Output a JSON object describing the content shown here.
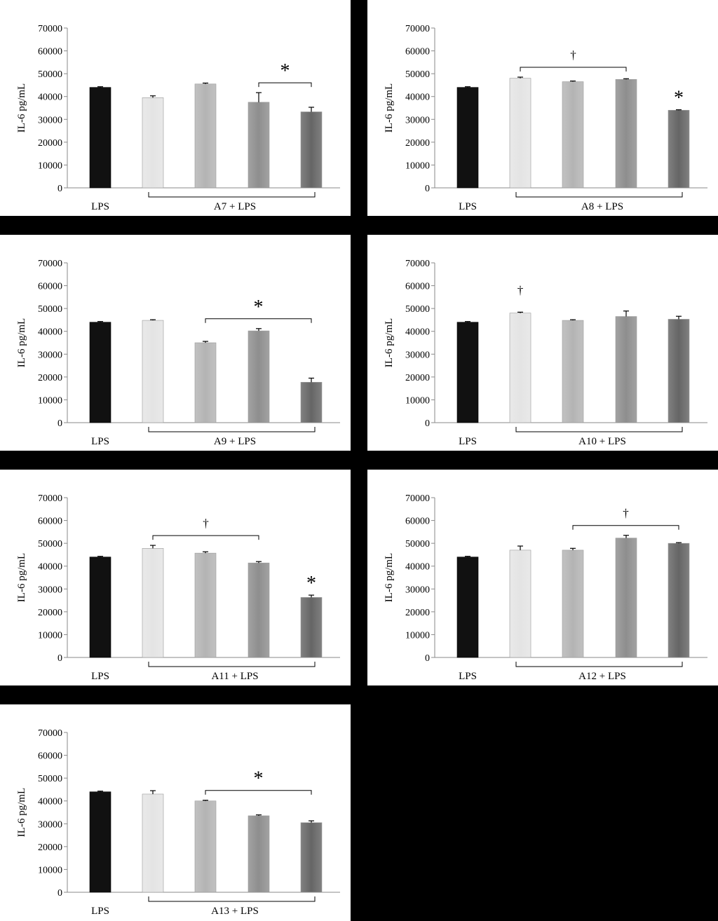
{
  "colors": {
    "series": [
      "#111111",
      "#e4e4e4",
      "#b4b4b4",
      "#8e8e8e",
      "#656565"
    ],
    "background": "#000000",
    "panel": "#ffffff"
  },
  "chart_data": [
    {
      "type": "bar",
      "ylabel": "IL-6 pg/mL",
      "ylim": [
        0,
        70000
      ],
      "yticks": [
        "0",
        "10000",
        "20000",
        "30000",
        "40000",
        "50000",
        "60000",
        "70000"
      ],
      "values": [
        44000,
        39500,
        45500,
        37500,
        33300
      ],
      "errors": [
        300,
        800,
        400,
        4200,
        2000
      ],
      "control_label": "LPS",
      "group_label": "A7 + LPS",
      "annotations": [
        {
          "symbol": "*",
          "kind": "bracket",
          "from": 3,
          "to": 4
        }
      ]
    },
    {
      "type": "bar",
      "ylabel": "IL-6 pg/mL",
      "ylim": [
        0,
        70000
      ],
      "yticks": [
        "0",
        "10000",
        "20000",
        "30000",
        "40000",
        "50000",
        "60000",
        "70000"
      ],
      "values": [
        44000,
        48000,
        46500,
        47500,
        34000
      ],
      "errors": [
        300,
        500,
        300,
        300,
        200
      ],
      "control_label": "LPS",
      "group_label": "A8 + LPS",
      "annotations": [
        {
          "symbol": "†",
          "kind": "bracket",
          "from": 1,
          "to": 3
        },
        {
          "symbol": "*",
          "kind": "single",
          "from": 4,
          "to": 4
        }
      ]
    },
    {
      "type": "bar",
      "ylabel": "IL-6 pg/mL",
      "ylim": [
        0,
        70000
      ],
      "yticks": [
        "0",
        "10000",
        "20000",
        "30000",
        "40000",
        "50000",
        "60000",
        "70000"
      ],
      "values": [
        44000,
        44800,
        35000,
        40200,
        17700
      ],
      "errors": [
        300,
        300,
        600,
        1000,
        1800
      ],
      "control_label": "LPS",
      "group_label": "A9 + LPS",
      "annotations": [
        {
          "symbol": "*",
          "kind": "bracket",
          "from": 2,
          "to": 4
        }
      ]
    },
    {
      "type": "bar",
      "ylabel": "IL-6 pg/mL",
      "ylim": [
        0,
        70000
      ],
      "yticks": [
        "0",
        "10000",
        "20000",
        "30000",
        "40000",
        "50000",
        "60000",
        "70000"
      ],
      "values": [
        44000,
        48000,
        44800,
        46500,
        45300
      ],
      "errors": [
        300,
        400,
        300,
        2400,
        1300
      ],
      "control_label": "LPS",
      "group_label": "A10 + LPS",
      "annotations": [
        {
          "symbol": "†",
          "kind": "single",
          "from": 1,
          "to": 1
        }
      ]
    },
    {
      "type": "bar",
      "ylabel": "IL-6 pg/mL",
      "ylim": [
        0,
        70000
      ],
      "yticks": [
        "0",
        "10000",
        "20000",
        "30000",
        "40000",
        "50000",
        "60000",
        "70000"
      ],
      "values": [
        44000,
        47800,
        45700,
        41400,
        26300
      ],
      "errors": [
        300,
        1300,
        600,
        600,
        1000
      ],
      "control_label": "LPS",
      "group_label": "A11 + LPS",
      "annotations": [
        {
          "symbol": "†",
          "kind": "bracket",
          "from": 1,
          "to": 3
        },
        {
          "symbol": "*",
          "kind": "single",
          "from": 4,
          "to": 4
        }
      ]
    },
    {
      "type": "bar",
      "ylabel": "IL-6 pg/mL",
      "ylim": [
        0,
        70000
      ],
      "yticks": [
        "0",
        "10000",
        "20000",
        "30000",
        "40000",
        "50000",
        "60000",
        "70000"
      ],
      "values": [
        44000,
        47000,
        47000,
        52300,
        50000
      ],
      "errors": [
        300,
        1800,
        800,
        1200,
        300
      ],
      "control_label": "LPS",
      "group_label": "A12 + LPS",
      "annotations": [
        {
          "symbol": "†",
          "kind": "bracket",
          "from": 2,
          "to": 4
        }
      ]
    },
    {
      "type": "bar",
      "ylabel": "IL-6 pg/mL",
      "ylim": [
        0,
        70000
      ],
      "yticks": [
        "0",
        "10000",
        "20000",
        "30000",
        "40000",
        "50000",
        "60000",
        "70000"
      ],
      "values": [
        44000,
        43000,
        40000,
        33500,
        30500
      ],
      "errors": [
        300,
        1500,
        300,
        400,
        800
      ],
      "control_label": "LPS",
      "group_label": "A13 + LPS",
      "annotations": [
        {
          "symbol": "*",
          "kind": "bracket",
          "from": 2,
          "to": 4
        }
      ]
    }
  ]
}
